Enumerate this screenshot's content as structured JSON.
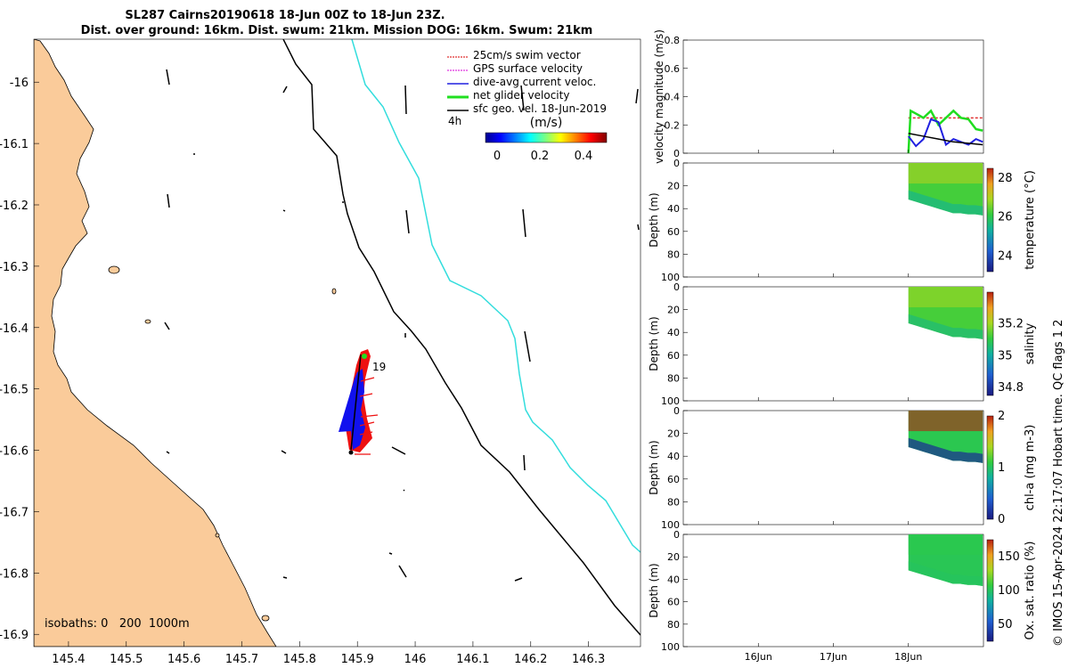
{
  "header": {
    "title_line1": "SL287 Cairns20190618 18-Jun 00Z to 18-Jun 23Z.",
    "title_line2": "Dist. over ground: 16km. Dist. swum: 21km. Mission DOG: 16km. Swum: 21km"
  },
  "map": {
    "legend": {
      "items": [
        {
          "label": "25cm/s swim vector",
          "color": "#e03030"
        },
        {
          "label": "GPS surface velocity",
          "color": "#e030e0"
        },
        {
          "label": "dive-avg current veloc.",
          "color": "#2020e0"
        },
        {
          "label": "net glider velocity",
          "color": "#20e020"
        },
        {
          "label": "sfc geo. vel. 18-Jun-2019",
          "color": "#000000"
        }
      ],
      "time_label": "4h",
      "colorbar_unit": "(m/s)",
      "colorbar_ticks": [
        "0",
        "0.2",
        "0.4"
      ]
    },
    "marker_label": "19",
    "isobaths_label": "isobaths: 0   200  1000m",
    "colors": {
      "land": "#facb9a",
      "isobath_200": "#000000",
      "isobath_1000": "#33dddd",
      "track_swim": "#ee1111",
      "track_current": "#1111ee"
    }
  },
  "footer": {
    "credit": "© IMOS 15-Apr-2024 22:17:07 Hobart time. QC flags 1  2"
  },
  "chart_data": [
    {
      "type": "scatter",
      "title": "",
      "xlabel": "",
      "ylabel": "",
      "x_ticks": [
        "145.4",
        "145.5",
        "145.6",
        "145.7",
        "145.8",
        "145.9",
        "146",
        "146.1",
        "146.2",
        "146.3"
      ],
      "y_ticks": [
        "-16",
        "-16.1",
        "-16.2",
        "-16.3",
        "-16.4",
        "-16.5",
        "-16.6",
        "-16.7",
        "-16.8",
        "-16.9"
      ],
      "xlim": [
        145.34,
        146.39
      ],
      "ylim": [
        -16.92,
        -15.93
      ],
      "series": [
        {
          "name": "glider track",
          "points": [
            [
              145.92,
              -16.6
            ],
            [
              145.91,
              -16.58
            ],
            [
              145.91,
              -16.55
            ],
            [
              145.91,
              -16.52
            ],
            [
              145.92,
              -16.49
            ],
            [
              145.92,
              -16.47
            ],
            [
              145.93,
              -16.45
            ],
            [
              145.93,
              -16.43
            ]
          ]
        }
      ]
    },
    {
      "type": "line",
      "ylabel": "velocity magnitude (m/s)",
      "ylim": [
        0,
        0.8
      ],
      "y_ticks": [
        "0",
        "0.2",
        "0.4",
        "0.6",
        "0.8"
      ],
      "x_ticks": [
        "16Jun",
        "17Jun",
        "18Jun"
      ],
      "series": [
        {
          "name": "swim",
          "color": "#e03030",
          "x": [
            18.0,
            18.2,
            18.4,
            18.6,
            18.8,
            18.99
          ],
          "y": [
            0.25,
            0.25,
            0.25,
            0.25,
            0.25,
            0.25
          ]
        },
        {
          "name": "net glider",
          "color": "#20dd20",
          "x": [
            18.0,
            18.03,
            18.1,
            18.2,
            18.3,
            18.4,
            18.5,
            18.6,
            18.7,
            18.8,
            18.9,
            18.99
          ],
          "y": [
            0.0,
            0.3,
            0.28,
            0.25,
            0.3,
            0.2,
            0.25,
            0.3,
            0.25,
            0.24,
            0.17,
            0.16
          ]
        },
        {
          "name": "dive-avg current",
          "color": "#2020e0",
          "x": [
            18.0,
            18.1,
            18.2,
            18.3,
            18.4,
            18.5,
            18.6,
            18.7,
            18.8,
            18.9,
            18.99
          ],
          "y": [
            0.12,
            0.05,
            0.1,
            0.24,
            0.22,
            0.06,
            0.1,
            0.08,
            0.06,
            0.1,
            0.08
          ]
        },
        {
          "name": "sfc geo",
          "color": "#000000",
          "x": [
            18.0,
            18.2,
            18.4,
            18.6,
            18.8,
            18.99
          ],
          "y": [
            0.14,
            0.12,
            0.1,
            0.08,
            0.07,
            0.06
          ]
        }
      ]
    },
    {
      "type": "heatmap",
      "ylabel": "Depth (m)",
      "colorbar_label": "temperature (°C)",
      "colorbar_ticks": [
        "24",
        "26",
        "28"
      ],
      "clim": [
        23.2,
        28.5
      ],
      "y_ticks": [
        "0",
        "20",
        "40",
        "60",
        "80",
        "100"
      ],
      "ylim": [
        0,
        100
      ],
      "x_ticks": [
        "16Jun",
        "17Jun",
        "18Jun"
      ],
      "value_range": [
        25.5,
        27.0
      ]
    },
    {
      "type": "heatmap",
      "ylabel": "Depth (m)",
      "colorbar_label": "salinity",
      "colorbar_ticks": [
        "34.8",
        "35",
        "35.2"
      ],
      "clim": [
        34.75,
        35.4
      ],
      "y_ticks": [
        "0",
        "20",
        "40",
        "60",
        "80",
        "100"
      ],
      "ylim": [
        0,
        100
      ],
      "x_ticks": [
        "16Jun",
        "17Jun",
        "18Jun"
      ],
      "value_range": [
        35.05,
        35.2
      ]
    },
    {
      "type": "heatmap",
      "ylabel": "Depth (m)",
      "colorbar_label": "chl-a (mg m-3)",
      "colorbar_ticks": [
        "0",
        "1",
        "2"
      ],
      "clim": [
        0,
        2
      ],
      "y_ticks": [
        "0",
        "20",
        "40",
        "60",
        "80",
        "100"
      ],
      "ylim": [
        0,
        100
      ],
      "x_ticks": [
        "16Jun",
        "17Jun",
        "18Jun"
      ],
      "value_range": [
        0.1,
        2.0
      ]
    },
    {
      "type": "heatmap",
      "ylabel": "Depth (m)",
      "colorbar_label": "Ox. sat. ratio (%)",
      "colorbar_ticks": [
        "50",
        "100",
        "150"
      ],
      "clim": [
        25,
        175
      ],
      "y_ticks": [
        "0",
        "20",
        "40",
        "60",
        "80",
        "100"
      ],
      "ylim": [
        0,
        100
      ],
      "x_ticks": [
        "16Jun",
        "17Jun",
        "18Jun"
      ],
      "value_range": [
        100,
        105
      ]
    }
  ]
}
